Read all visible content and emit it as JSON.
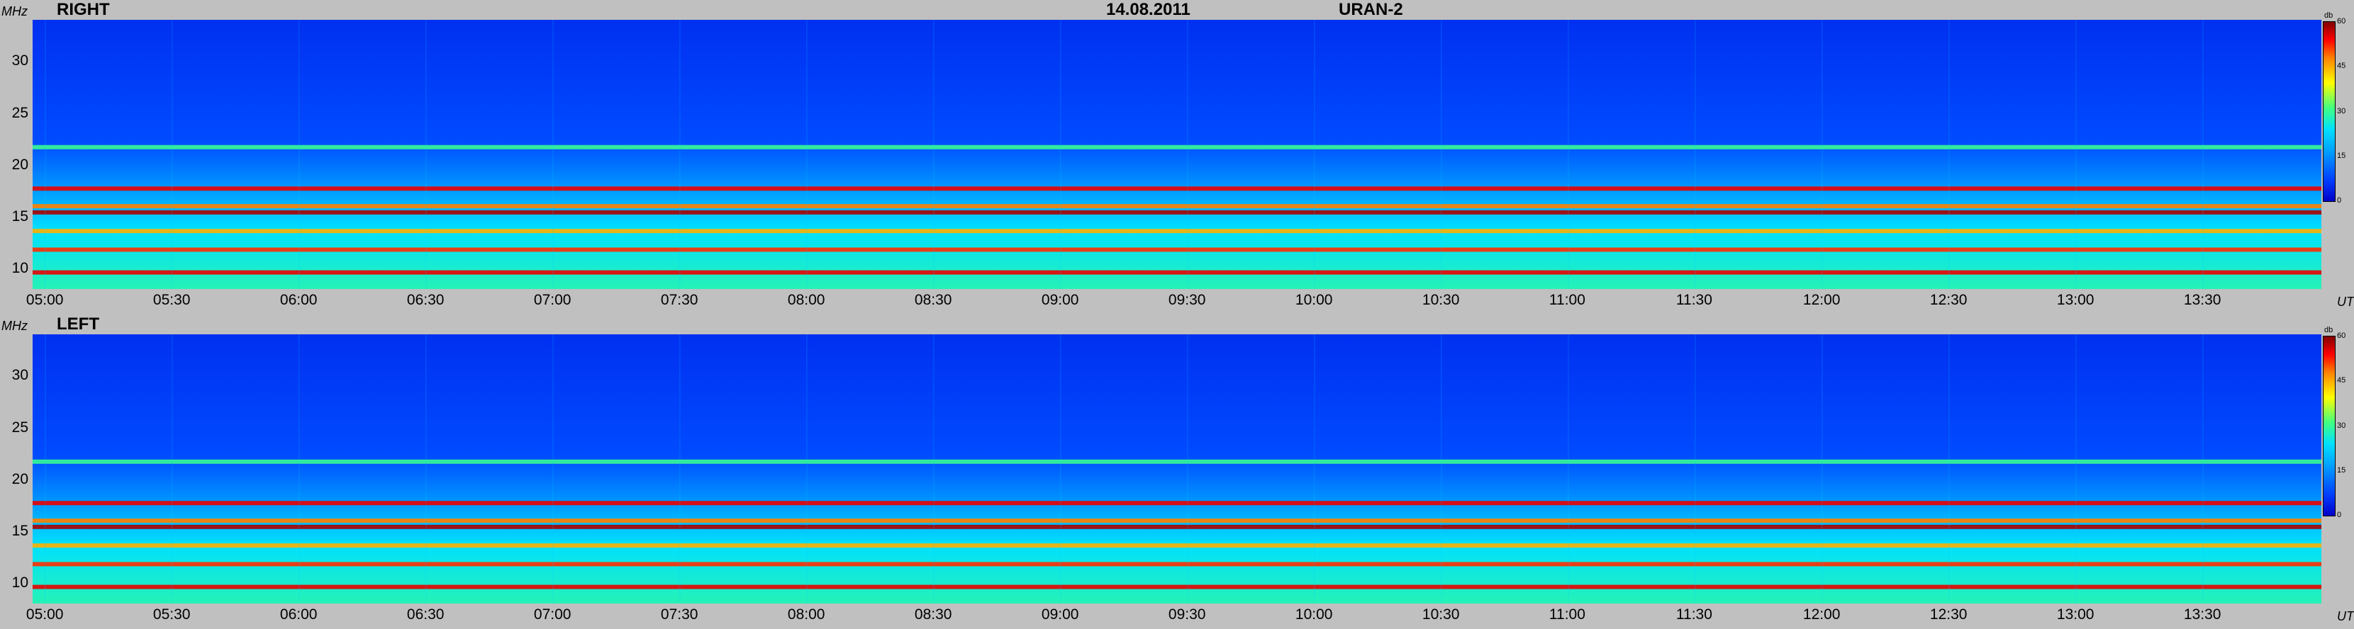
{
  "chart_data": [
    {
      "type": "heatmap",
      "title": "RIGHT",
      "ylabel": "MHz",
      "xlabel": "UT",
      "yticks": [
        "10",
        "15",
        "20",
        "25",
        "30"
      ],
      "ylim": [
        8,
        34
      ],
      "xticks": [
        "05:00",
        "05:30",
        "06:00",
        "06:30",
        "07:00",
        "07:30",
        "08:00",
        "08:30",
        "09:00",
        "09:30",
        "10:00",
        "10:30",
        "11:00",
        "11:30",
        "12:00",
        "12:30",
        "13:00",
        "13:30"
      ],
      "xlim": [
        "04:57",
        "13:58"
      ],
      "colorbar": {
        "label": "db",
        "ticks": [
          "0",
          "15",
          "30",
          "45",
          "60"
        ],
        "range": [
          0,
          60
        ]
      },
      "bands_mhz": [
        {
          "freq": 9.6,
          "db": 55
        },
        {
          "freq": 11.8,
          "db": 52
        },
        {
          "freq": 13.6,
          "db": 45
        },
        {
          "freq": 15.4,
          "db": 58
        },
        {
          "freq": 16.0,
          "db": 48
        },
        {
          "freq": 17.7,
          "db": 55
        },
        {
          "freq": 21.7,
          "db": 30
        }
      ]
    },
    {
      "type": "heatmap",
      "title": "LEFT",
      "ylabel": "MHz",
      "xlabel": "UT",
      "yticks": [
        "10",
        "15",
        "20",
        "25",
        "30"
      ],
      "ylim": [
        8,
        34
      ],
      "xticks": [
        "05:00",
        "05:30",
        "06:00",
        "06:30",
        "07:00",
        "07:30",
        "08:00",
        "08:30",
        "09:00",
        "09:30",
        "10:00",
        "10:30",
        "11:00",
        "11:30",
        "12:00",
        "12:30",
        "13:00",
        "13:30"
      ],
      "xlim": [
        "04:57",
        "13:58"
      ],
      "colorbar": {
        "label": "db",
        "ticks": [
          "0",
          "15",
          "30",
          "45",
          "60"
        ],
        "range": [
          0,
          60
        ]
      },
      "bands_mhz": [
        {
          "freq": 9.6,
          "db": 55
        },
        {
          "freq": 11.8,
          "db": 52
        },
        {
          "freq": 13.6,
          "db": 45
        },
        {
          "freq": 15.4,
          "db": 58
        },
        {
          "freq": 16.0,
          "db": 48
        },
        {
          "freq": 17.7,
          "db": 55
        },
        {
          "freq": 21.7,
          "db": 30
        }
      ]
    }
  ],
  "header": {
    "date": "14.08.2011",
    "instrument": "URAN-2"
  },
  "colors": {
    "background": "#c0c0c0",
    "low": "#0a3ad8",
    "band": "#ffe000",
    "hot": "#c00000"
  }
}
